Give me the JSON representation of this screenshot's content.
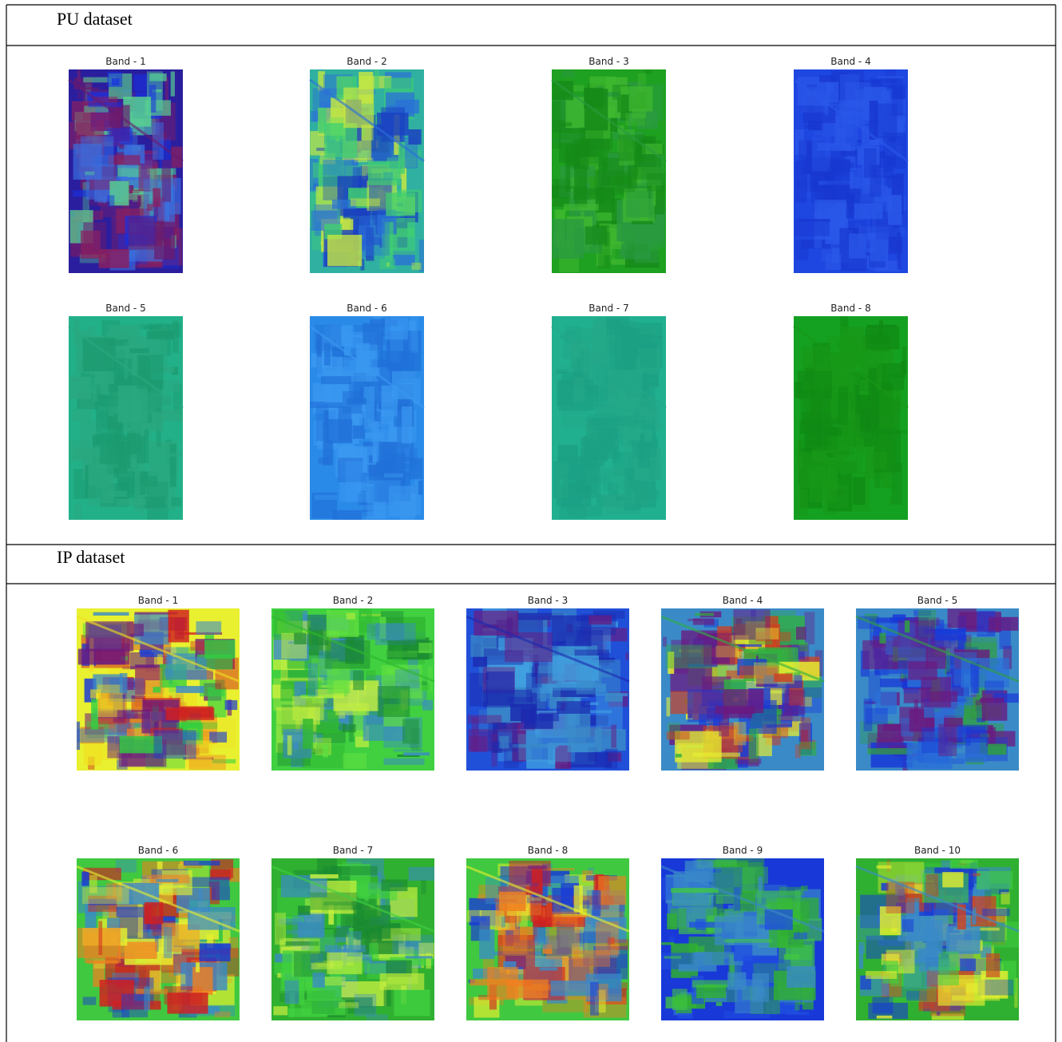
{
  "sections": [
    {
      "title": "PU dataset",
      "bands": [
        "Band - 1",
        "Band - 2",
        "Band - 3",
        "Band - 4",
        "Band - 5",
        "Band - 6",
        "Band - 7",
        "Band - 8"
      ]
    },
    {
      "title": "IP dataset",
      "bands": [
        "Band - 1",
        "Band - 2",
        "Band - 3",
        "Band - 4",
        "Band - 5",
        "Band - 6",
        "Band - 7",
        "Band - 8",
        "Band - 9",
        "Band - 10"
      ]
    }
  ]
}
